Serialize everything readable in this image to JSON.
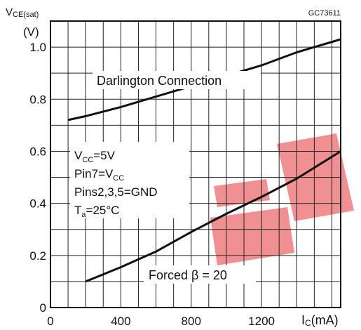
{
  "chart_data": {
    "type": "line",
    "figure_code": "GC73611",
    "y_label_main": "V",
    "y_label_sub": "CE(sat)",
    "y_unit": "(V)",
    "x_label_main": "I",
    "x_label_sub": "C",
    "x_unit": "(mA)",
    "xlim": [
      0,
      1650
    ],
    "ylim": [
      0,
      1.1
    ],
    "x_ticks": [
      "0",
      "400",
      "800",
      "1200"
    ],
    "x_tick_values": [
      0,
      400,
      800,
      1200
    ],
    "y_ticks": [
      "0",
      "0.2",
      "0.4",
      "0.6",
      "0.8",
      "1.0"
    ],
    "y_tick_values": [
      0,
      0.2,
      0.4,
      0.6,
      0.8,
      1.0
    ],
    "grid": true,
    "series": [
      {
        "label": "Darlington Connection",
        "x": [
          100,
          200,
          400,
          600,
          800,
          1000,
          1200,
          1400,
          1500,
          1650
        ],
        "y": [
          0.72,
          0.735,
          0.77,
          0.81,
          0.85,
          0.89,
          0.93,
          0.98,
          1.0,
          1.03
        ]
      },
      {
        "label": "Forced β = 20",
        "x": [
          200,
          400,
          600,
          800,
          1000,
          1200,
          1400,
          1650
        ],
        "y": [
          0.1,
          0.155,
          0.215,
          0.29,
          0.36,
          0.425,
          0.495,
          0.6
        ]
      }
    ],
    "conditions": {
      "vcc": {
        "main": "V",
        "sub": "CC",
        "rest": "=5V"
      },
      "pin7": {
        "main": "Pin7=V",
        "sub": "CC"
      },
      "pins": {
        "main": "Pins2,3,5=GND"
      },
      "ta": {
        "main": "T",
        "sub": "a",
        "rest": "=25°C"
      }
    },
    "colors": {
      "line": "#111111",
      "grid": "#222222",
      "watermark": "#e8474d"
    }
  }
}
